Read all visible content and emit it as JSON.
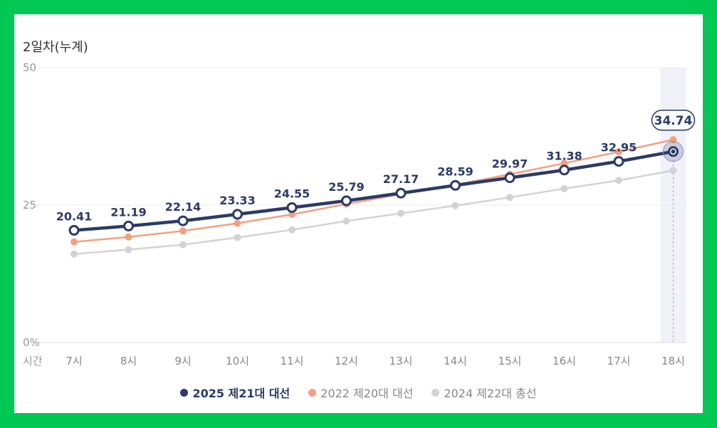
{
  "chart_data": {
    "type": "line",
    "title": "2일차(누계)",
    "xlabel": "시간",
    "ylabel": "",
    "categories": [
      "7시",
      "8시",
      "9시",
      "10시",
      "11시",
      "12시",
      "13시",
      "14시",
      "15시",
      "16시",
      "17시",
      "18시"
    ],
    "ylim": [
      0,
      50
    ],
    "yticks": [
      "0%",
      "25",
      "50"
    ],
    "grid": true,
    "legend_position": "bottom",
    "highlighted_category": "18시",
    "series": [
      {
        "name": "2025 제21대 대선",
        "color": "#2b3a67",
        "values": [
          20.41,
          21.19,
          22.14,
          23.33,
          24.55,
          25.79,
          27.17,
          28.59,
          29.97,
          31.38,
          32.95,
          34.74
        ],
        "labels": [
          "20.41",
          "21.19",
          "22.14",
          "23.33",
          "24.55",
          "25.79",
          "27.17",
          "28.59",
          "29.97",
          "31.38",
          "32.95",
          "34.74"
        ]
      },
      {
        "name": "2022 제20대 대선",
        "color": "#f4a07e",
        "values": [
          18.3,
          19.2,
          20.3,
          21.7,
          23.3,
          25.2,
          27.0,
          28.7,
          30.6,
          32.6,
          34.7,
          36.9
        ]
      },
      {
        "name": "2024 제22대 총선",
        "color": "#d3d3d3",
        "values": [
          16.1,
          16.9,
          17.8,
          19.1,
          20.5,
          22.1,
          23.5,
          24.9,
          26.4,
          28.0,
          29.5,
          31.3
        ]
      }
    ]
  }
}
